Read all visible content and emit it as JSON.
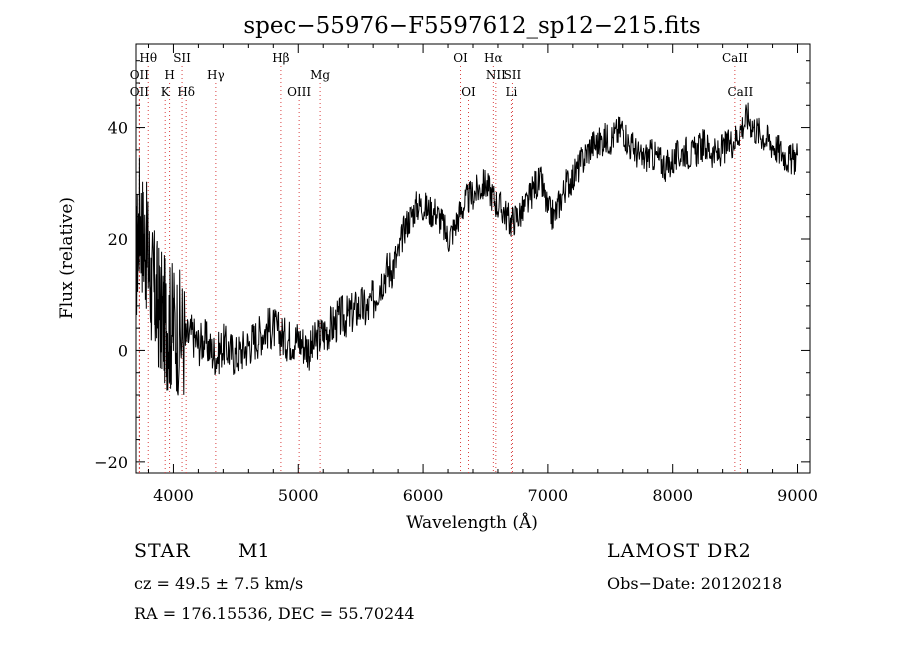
{
  "chart_data": {
    "type": "line",
    "title": "spec−55976−F5597612_sp12−215.fits",
    "xlabel": "Wavelength (Å)",
    "ylabel": "Flux (relative)",
    "xlim": [
      3700,
      9100
    ],
    "ylim": [
      -22,
      55
    ],
    "xticks": [
      4000,
      5000,
      6000,
      7000,
      8000,
      9000
    ],
    "yticks": [
      -20,
      0,
      20,
      40
    ],
    "ytick_labels": [
      "−20",
      "0",
      "20",
      "40"
    ],
    "grid": false,
    "series": [
      {
        "x": [
          3700,
          3730,
          3760,
          3790,
          3820,
          3850,
          3880,
          3910,
          3940,
          3970,
          4000,
          4050,
          4100,
          4150,
          4200,
          4250,
          4300,
          4350,
          4400,
          4450,
          4500,
          4550,
          4600,
          4650,
          4700,
          4750,
          4800,
          4850,
          4900,
          4950,
          5000,
          5050,
          5100,
          5150,
          5200,
          5250,
          5300,
          5350,
          5400,
          5450,
          5500,
          5550,
          5600,
          5650,
          5700,
          5750,
          5800,
          5850,
          5900,
          5950,
          6000,
          6050,
          6100,
          6150,
          6200,
          6250,
          6300,
          6350,
          6400,
          6450,
          6500,
          6550,
          6600,
          6650,
          6700,
          6750,
          6800,
          6850,
          6900,
          6950,
          7000,
          7050,
          7100,
          7150,
          7200,
          7250,
          7300,
          7350,
          7400,
          7450,
          7500,
          7550,
          7600,
          7650,
          7700,
          7750,
          7800,
          7850,
          7900,
          7950,
          8000,
          8050,
          8100,
          8150,
          8200,
          8250,
          8300,
          8350,
          8400,
          8450,
          8500,
          8550,
          8600,
          8650,
          8700,
          8750,
          8800,
          8850,
          8900,
          8950,
          9000
        ],
        "y": [
          15,
          25,
          20,
          18,
          12,
          10,
          8,
          6,
          5,
          4,
          5,
          3,
          2,
          3,
          1,
          2,
          0,
          -1,
          1,
          0,
          -1,
          0,
          1,
          2,
          3,
          4,
          4,
          3,
          2,
          2,
          2,
          1,
          0,
          2,
          3,
          4,
          5,
          6,
          6,
          7,
          8,
          7,
          9,
          12,
          14,
          15,
          17,
          22,
          24,
          26,
          26,
          25,
          25,
          23,
          20,
          22,
          25,
          27,
          28,
          29,
          30,
          28,
          26,
          25,
          23,
          24,
          25,
          27,
          30,
          30,
          25,
          24,
          27,
          30,
          31,
          33,
          35,
          37,
          37,
          38,
          38,
          39,
          40,
          37,
          36,
          34,
          35,
          35,
          34,
          33,
          34,
          35,
          36,
          35,
          36,
          37,
          36,
          35,
          36,
          37,
          38,
          40,
          42,
          40,
          39,
          38,
          37,
          36,
          35,
          34,
          35
        ]
      }
    ],
    "lines_top_row1": [
      {
        "label": "Hθ",
        "wavelength": 3798
      },
      {
        "label": "SII",
        "wavelength": 4069
      },
      {
        "label": "Hβ",
        "wavelength": 4861
      },
      {
        "label": "OI",
        "wavelength": 6300
      },
      {
        "label": "Hα",
        "wavelength": 6563
      },
      {
        "label": "CaII",
        "wavelength": 8498
      }
    ],
    "lines_top_row2": [
      {
        "label": "OII",
        "wavelength": 3727
      },
      {
        "label": "H",
        "wavelength": 3969
      },
      {
        "label": "Hγ",
        "wavelength": 4340
      },
      {
        "label": "Mg",
        "wavelength": 5175
      },
      {
        "label": "NII",
        "wavelength": 6583
      },
      {
        "label": "SII",
        "wavelength": 6716
      }
    ],
    "lines_top_row3": [
      {
        "label": "OII",
        "wavelength": 3727
      },
      {
        "label": "K",
        "wavelength": 3934
      },
      {
        "label": "Hδ",
        "wavelength": 4102
      },
      {
        "label": "OIII",
        "wavelength": 5007
      },
      {
        "label": "OI",
        "wavelength": 6364
      },
      {
        "label": "Li",
        "wavelength": 6708
      },
      {
        "label": "CaII",
        "wavelength": 8542
      }
    ],
    "line_color": "#d94040"
  },
  "info": {
    "object_type": "STAR",
    "subclass": "M1",
    "survey": "LAMOST DR2",
    "cz": "cz = 49.5 ± 7.5 km/s",
    "obs_date": "Obs−Date: 20120218",
    "radec": "RA = 176.15536, DEC =  55.70244"
  }
}
